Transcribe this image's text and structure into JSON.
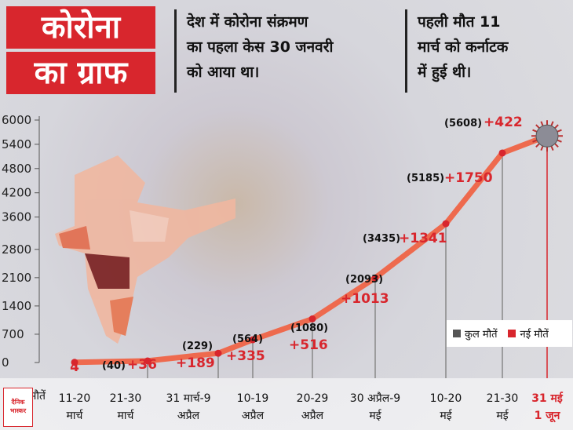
{
  "header": {
    "title_line1": "कोरोना",
    "title_line2": "का ग्राफ",
    "note1_line1": "देश में कोरोना संक्रमण",
    "note1_line2": "का पहला केस 30 जनवरी",
    "note1_line3": "को आया था।",
    "note2_line1": "पहली मौत 11",
    "note2_line2": "मार्च को कर्नाटक",
    "note2_line3": "में हुई थी।"
  },
  "colors": {
    "accent": "#d8262d",
    "line": "#ee6a4e",
    "total_swatch": "#555555",
    "new_swatch": "#d8262d"
  },
  "logo_text": "दैनिक भास्कर",
  "chart_data": {
    "type": "line",
    "xlabel": "मौतें",
    "ylim": [
      0,
      6000
    ],
    "yticks": [
      0,
      700,
      1400,
      2100,
      2800,
      3600,
      4200,
      4800,
      5400,
      6000
    ],
    "categories": [
      [
        "11-20",
        "मार्च"
      ],
      [
        "21-30",
        "मार्च"
      ],
      [
        "31 मार्च-9",
        "अप्रैल"
      ],
      [
        "10-19",
        "अप्रैल"
      ],
      [
        "20-29",
        "अप्रैल"
      ],
      [
        "30 अप्रैल-9",
        "मई"
      ],
      [
        "10-20",
        "मई"
      ],
      [
        "21-30",
        "मई"
      ],
      [
        "31 मई",
        "1 जून"
      ]
    ],
    "series": [
      {
        "name": "कुल मौतें",
        "values": [
          4,
          40,
          229,
          564,
          1080,
          2093,
          3435,
          5185,
          5608
        ],
        "labels": [
          "",
          "(40)",
          "(229)",
          "(564)",
          "(1080)",
          "(2093)",
          "(3435)",
          "(5185)",
          "(5608)"
        ]
      },
      {
        "name": "नई मौतें",
        "values": [
          4,
          36,
          189,
          335,
          516,
          1013,
          1341,
          1750,
          422
        ],
        "labels": [
          "4",
          "+36",
          "+189",
          "+335",
          "+516",
          "+1013",
          "+1341",
          "+1750",
          "+422"
        ]
      }
    ],
    "legend_position": "bottom-right",
    "grid": false
  }
}
